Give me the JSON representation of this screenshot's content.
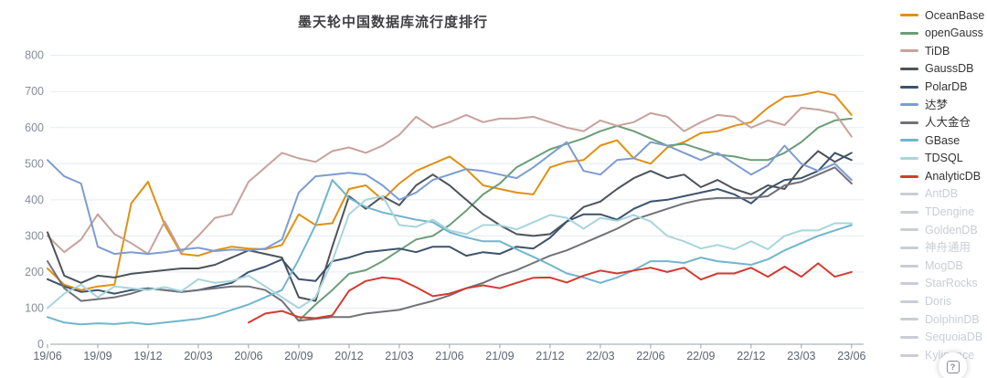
{
  "chart_data": {
    "type": "line",
    "title": "墨天轮中国数据库流行度排行",
    "xlabel": "",
    "ylabel": "",
    "ylim": [
      0,
      800
    ],
    "y_ticks": [
      0,
      100,
      200,
      300,
      400,
      500,
      600,
      700,
      800
    ],
    "grid": true,
    "legend_position": "right",
    "x_tick_every": 3,
    "grid_color": "#e4ebf3",
    "axis_color": "#9aa1ab",
    "label_color": "#6e7787",
    "inactive_legend_color": "#c9ced4",
    "x": [
      "19/06",
      "19/07",
      "19/08",
      "19/09",
      "19/10",
      "19/11",
      "19/12",
      "20/01",
      "20/02",
      "20/03",
      "20/04",
      "20/05",
      "20/06",
      "20/07",
      "20/08",
      "20/09",
      "20/10",
      "20/11",
      "20/12",
      "21/01",
      "21/02",
      "21/03",
      "21/04",
      "21/05",
      "21/06",
      "21/07",
      "21/08",
      "21/09",
      "21/10",
      "21/11",
      "21/12",
      "22/01",
      "22/02",
      "22/03",
      "22/04",
      "22/05",
      "22/06",
      "22/07",
      "22/08",
      "22/09",
      "22/10",
      "22/11",
      "22/12",
      "23/01",
      "23/02",
      "23/03",
      "23/04",
      "23/05",
      "23/06"
    ],
    "series": [
      {
        "name": "OceanBase",
        "color": "#e09012",
        "active": true,
        "values": [
          210,
          165,
          150,
          160,
          165,
          390,
          450,
          330,
          250,
          245,
          260,
          270,
          265,
          263,
          275,
          360,
          330,
          335,
          430,
          440,
          400,
          445,
          480,
          500,
          520,
          485,
          440,
          430,
          420,
          415,
          490,
          505,
          510,
          550,
          565,
          515,
          500,
          545,
          560,
          585,
          590,
          605,
          615,
          655,
          685,
          690,
          700,
          690,
          635
        ]
      },
      {
        "name": "openGauss",
        "color": "#6b9e78",
        "active": true,
        "values": [
          null,
          null,
          null,
          null,
          null,
          null,
          null,
          null,
          null,
          null,
          null,
          null,
          null,
          null,
          null,
          65,
          110,
          150,
          195,
          205,
          230,
          260,
          290,
          300,
          330,
          370,
          415,
          445,
          490,
          515,
          540,
          555,
          570,
          590,
          605,
          590,
          570,
          550,
          555,
          540,
          525,
          520,
          510,
          510,
          530,
          560,
          600,
          620,
          625
        ]
      },
      {
        "name": "TiDB",
        "color": "#c7a29c",
        "active": true,
        "values": [
          300,
          255,
          290,
          360,
          305,
          280,
          250,
          340,
          255,
          300,
          350,
          360,
          450,
          490,
          530,
          515,
          505,
          535,
          545,
          530,
          550,
          580,
          630,
          600,
          615,
          635,
          615,
          625,
          625,
          630,
          615,
          600,
          590,
          620,
          605,
          615,
          640,
          630,
          590,
          615,
          635,
          630,
          600,
          620,
          607,
          655,
          650,
          640,
          575
        ]
      },
      {
        "name": "GaussDB",
        "color": "#4d5359",
        "active": true,
        "values": [
          310,
          190,
          170,
          190,
          185,
          195,
          200,
          205,
          210,
          210,
          220,
          240,
          260,
          250,
          240,
          130,
          120,
          270,
          410,
          375,
          410,
          385,
          440,
          470,
          440,
          400,
          360,
          330,
          305,
          300,
          305,
          340,
          380,
          395,
          430,
          460,
          480,
          460,
          470,
          435,
          455,
          430,
          415,
          440,
          430,
          490,
          535,
          505,
          530
        ]
      },
      {
        "name": "PolarDB",
        "color": "#3c536e",
        "active": true,
        "values": [
          180,
          160,
          145,
          150,
          140,
          150,
          155,
          150,
          145,
          150,
          160,
          170,
          200,
          215,
          235,
          180,
          175,
          230,
          240,
          255,
          260,
          265,
          255,
          270,
          270,
          245,
          255,
          250,
          270,
          265,
          295,
          340,
          360,
          360,
          345,
          375,
          395,
          400,
          410,
          420,
          430,
          415,
          390,
          430,
          455,
          460,
          480,
          530,
          510
        ]
      },
      {
        "name": "达梦",
        "color": "#7d9cd0",
        "active": true,
        "values": [
          510,
          465,
          445,
          270,
          250,
          255,
          250,
          255,
          262,
          267,
          258,
          262,
          260,
          265,
          290,
          420,
          465,
          470,
          475,
          470,
          440,
          400,
          420,
          455,
          470,
          485,
          480,
          470,
          460,
          490,
          525,
          560,
          480,
          470,
          510,
          515,
          560,
          550,
          530,
          510,
          530,
          500,
          470,
          495,
          550,
          500,
          480,
          500,
          455
        ]
      },
      {
        "name": "人大金仓",
        "color": "#717179",
        "active": true,
        "values": [
          230,
          155,
          120,
          125,
          130,
          140,
          155,
          150,
          145,
          150,
          155,
          160,
          160,
          150,
          120,
          65,
          70,
          75,
          75,
          85,
          90,
          95,
          108,
          120,
          135,
          155,
          170,
          190,
          205,
          225,
          245,
          260,
          280,
          300,
          320,
          345,
          360,
          375,
          390,
          400,
          405,
          405,
          405,
          410,
          440,
          450,
          470,
          490,
          445
        ]
      },
      {
        "name": "GBase",
        "color": "#71b5cd",
        "active": true,
        "values": [
          75,
          60,
          55,
          58,
          56,
          60,
          55,
          60,
          65,
          70,
          80,
          95,
          110,
          130,
          150,
          235,
          330,
          455,
          405,
          380,
          365,
          355,
          345,
          338,
          310,
          296,
          285,
          285,
          263,
          242,
          220,
          196,
          185,
          170,
          185,
          205,
          230,
          230,
          225,
          240,
          230,
          225,
          220,
          235,
          260,
          280,
          300,
          315,
          330
        ]
      },
      {
        "name": "TDSQL",
        "color": "#a8d5dc",
        "active": true,
        "values": [
          100,
          140,
          165,
          130,
          160,
          155,
          150,
          158,
          147,
          180,
          170,
          175,
          190,
          160,
          130,
          100,
          130,
          230,
          360,
          400,
          410,
          330,
          325,
          345,
          315,
          305,
          330,
          330,
          318,
          338,
          358,
          350,
          320,
          350,
          342,
          358,
          340,
          300,
          285,
          265,
          275,
          263,
          285,
          263,
          300,
          315,
          315,
          335,
          335
        ]
      },
      {
        "name": "AnalyticDB",
        "color": "#d43a31",
        "active": true,
        "values": [
          null,
          null,
          null,
          null,
          null,
          null,
          null,
          null,
          null,
          null,
          null,
          null,
          60,
          85,
          92,
          75,
          72,
          80,
          148,
          175,
          185,
          180,
          158,
          133,
          140,
          155,
          163,
          155,
          170,
          184,
          185,
          171,
          190,
          204,
          196,
          204,
          212,
          200,
          212,
          179,
          196,
          196,
          212,
          187,
          215,
          187,
          224,
          187,
          200
        ]
      },
      {
        "name": "AntDB",
        "color": "#c9ced4",
        "active": false,
        "values": []
      },
      {
        "name": "TDengine",
        "color": "#c9ced4",
        "active": false,
        "values": []
      },
      {
        "name": "GoldenDB",
        "color": "#c9ced4",
        "active": false,
        "values": []
      },
      {
        "name": "神舟通用",
        "color": "#c9ced4",
        "active": false,
        "values": []
      },
      {
        "name": "MogDB",
        "color": "#c9ced4",
        "active": false,
        "values": []
      },
      {
        "name": "StarRocks",
        "color": "#c9ced4",
        "active": false,
        "values": []
      },
      {
        "name": "Doris",
        "color": "#c9ced4",
        "active": false,
        "values": []
      },
      {
        "name": "DolphinDB",
        "color": "#c9ced4",
        "active": false,
        "values": []
      },
      {
        "name": "SequoiaDB",
        "color": "#c9ced4",
        "active": false,
        "values": []
      },
      {
        "name": "Kyligence",
        "color": "#c9ced4",
        "active": false,
        "values": []
      }
    ]
  },
  "help_button": {
    "glyph": "?"
  }
}
